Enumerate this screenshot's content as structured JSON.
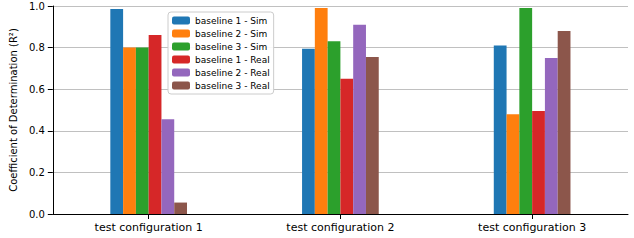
{
  "chart_data": {
    "type": "bar",
    "y_label": "Coefficient of Determination (R²)",
    "categories": [
      "test configuration 1",
      "test configuration 2",
      "test configuration 3"
    ],
    "series": [
      {
        "name": "baseline 1 - Sim",
        "color": "#1f77b4",
        "values": [
          0.985,
          0.795,
          0.81
        ]
      },
      {
        "name": "baseline 2 - Sim",
        "color": "#ff7f0e",
        "values": [
          0.8,
          0.99,
          0.48
        ]
      },
      {
        "name": "baseline 3 - Sim",
        "color": "#2ca02c",
        "values": [
          0.8,
          0.83,
          0.99
        ]
      },
      {
        "name": "baseline 1 - Real",
        "color": "#d62728",
        "values": [
          0.86,
          0.65,
          0.495
        ]
      },
      {
        "name": "baseline 2 - Real",
        "color": "#9467bd",
        "values": [
          0.455,
          0.91,
          0.75
        ]
      },
      {
        "name": "baseline 3 - Real",
        "color": "#8c564b",
        "values": [
          0.055,
          0.755,
          0.88
        ]
      }
    ],
    "ylim": [
      0,
      1
    ],
    "yticks": [
      {
        "value": 0,
        "label": "0.0"
      },
      {
        "value": 0.2,
        "label": "0.2"
      },
      {
        "value": 0.4,
        "label": "0.4"
      },
      {
        "value": 0.6,
        "label": "0.6"
      },
      {
        "value": 0.8,
        "label": "0.8"
      },
      {
        "value": 1,
        "label": "1.0"
      }
    ],
    "grid": true,
    "legend": "upper left"
  }
}
